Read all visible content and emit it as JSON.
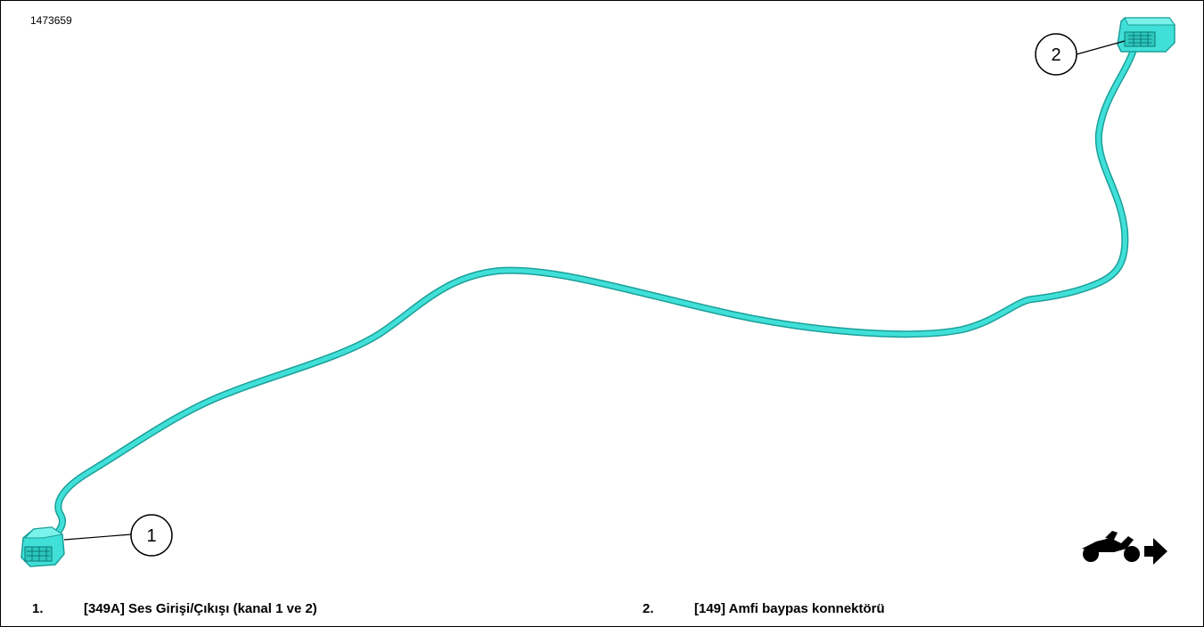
{
  "figure": {
    "id": "1473659"
  },
  "callouts": [
    {
      "number": "1"
    },
    {
      "number": "2"
    }
  ],
  "legend": [
    {
      "number": "1.",
      "text": "[349A] Ses Girişi/Çıkışı (kanal 1 ve 2)"
    },
    {
      "number": "2.",
      "text": "[149] Amfi baypas konnektörü"
    }
  ],
  "colors": {
    "cable": "#40e0d8",
    "cable_shadow": "#1a9f99",
    "outline": "#000000"
  },
  "icons": [
    "motorcycle-icon",
    "arrow-right-icon"
  ]
}
